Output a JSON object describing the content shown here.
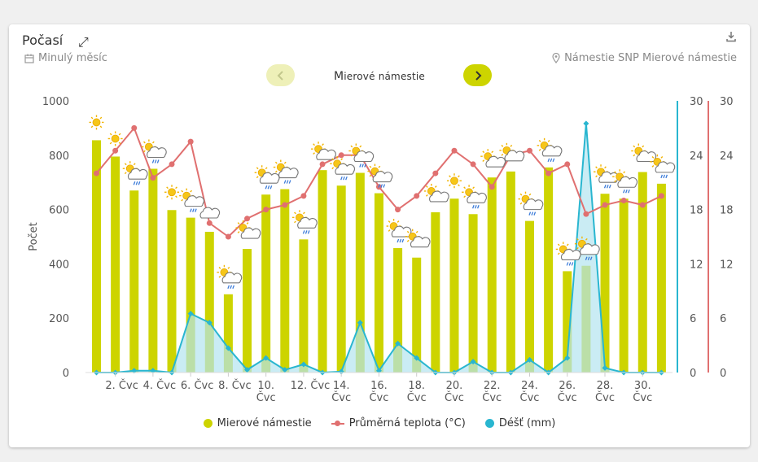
{
  "header": {
    "title": "Počasí",
    "period_label": "Minulý měsíc",
    "location_label": "Námestie SNP Mierové námestie",
    "station_prefix": "M",
    "station_rest": "ierové námestie"
  },
  "colors": {
    "bars": "#cdd400",
    "temperature": "#e07070",
    "rain": "#29b6d0",
    "rain_fill": "#b3e4ef"
  },
  "legend": {
    "bars": "Mierové námestie",
    "temperature": "Průměrná teplota (°C)",
    "rain": "Déšť (mm)"
  },
  "chart_data": {
    "type": "bar",
    "title": "",
    "ylabel": "Počet",
    "ylim_left": [
      0,
      1000
    ],
    "left_ticks": [
      0,
      200,
      400,
      600,
      800,
      1000
    ],
    "ylim_rain": [
      0,
      30
    ],
    "rain_ticks": [
      0,
      6,
      12,
      18,
      24,
      30
    ],
    "ylim_temp": [
      0,
      30
    ],
    "temp_ticks": [
      0,
      6,
      12,
      18,
      24,
      30
    ],
    "x_labels": [
      {
        "day": 2,
        "line1": "2. Čvc",
        "line2": ""
      },
      {
        "day": 4,
        "line1": "4. Čvc",
        "line2": ""
      },
      {
        "day": 6,
        "line1": "6. Čvc",
        "line2": ""
      },
      {
        "day": 8,
        "line1": "8. Čvc",
        "line2": ""
      },
      {
        "day": 10,
        "line1": "10.",
        "line2": "Čvc"
      },
      {
        "day": 12,
        "line1": "12. Čvc",
        "line2": ""
      },
      {
        "day": 14,
        "line1": "14.",
        "line2": "Čvc"
      },
      {
        "day": 16,
        "line1": "16.",
        "line2": "Čvc"
      },
      {
        "day": 18,
        "line1": "18.",
        "line2": "Čvc"
      },
      {
        "day": 20,
        "line1": "20.",
        "line2": "Čvc"
      },
      {
        "day": 22,
        "line1": "22.",
        "line2": "Čvc"
      },
      {
        "day": 24,
        "line1": "24.",
        "line2": "Čvc"
      },
      {
        "day": 26,
        "line1": "26.",
        "line2": "Čvc"
      },
      {
        "day": 28,
        "line1": "28.",
        "line2": "Čvc"
      },
      {
        "day": 30,
        "line1": "30.",
        "line2": "Čvc"
      }
    ],
    "days": [
      1,
      2,
      3,
      4,
      5,
      6,
      7,
      8,
      9,
      10,
      11,
      12,
      13,
      14,
      15,
      16,
      17,
      18,
      19,
      20,
      21,
      22,
      23,
      24,
      25,
      26,
      27,
      28,
      29,
      30,
      31
    ],
    "series": [
      {
        "name": "Mierové námestie",
        "type": "bar",
        "values": [
          855,
          795,
          670,
          750,
          598,
          570,
          518,
          288,
          455,
          655,
          675,
          490,
          745,
          688,
          735,
          660,
          458,
          423,
          590,
          640,
          583,
          718,
          740,
          558,
          755,
          373,
          393,
          658,
          640,
          738,
          695
        ]
      },
      {
        "name": "Průměrná teplota (°C)",
        "type": "line",
        "values": [
          22.0,
          24.5,
          27.0,
          21.5,
          23.0,
          25.5,
          16.5,
          15.0,
          17.0,
          18.0,
          18.5,
          19.5,
          23.0,
          24.0,
          24.0,
          20.5,
          18.0,
          19.5,
          22.0,
          24.5,
          23.0,
          20.5,
          24.0,
          24.5,
          22.0,
          23.0,
          17.5,
          18.5,
          19.0,
          18.5,
          19.5
        ]
      },
      {
        "name": "Déšť (mm)",
        "type": "area",
        "values": [
          0,
          0,
          0.2,
          0.2,
          0,
          6.5,
          5.5,
          2.7,
          0.3,
          1.6,
          0.3,
          0.9,
          0,
          0.1,
          5.5,
          0.2,
          3.2,
          1.6,
          0,
          0,
          1.2,
          0,
          0,
          1.4,
          0,
          1.6,
          27.5,
          0.5,
          0,
          0,
          0
        ]
      }
    ],
    "weather_icons": [
      "sun",
      "sun",
      "rain",
      "rain",
      "sun",
      "rain",
      "cloud",
      "rain",
      "partly-cloudy",
      "rain",
      "rain",
      "rain",
      "partly-cloudy",
      "rain",
      "rain",
      "rain",
      "rain",
      "partly-cloudy",
      "partly-cloudy",
      "sun",
      "rain",
      "partly-cloudy",
      "partly-cloudy",
      "rain",
      "rain",
      "rain",
      "rain",
      "rain",
      "rain",
      "partly-cloudy",
      "rain"
    ]
  }
}
